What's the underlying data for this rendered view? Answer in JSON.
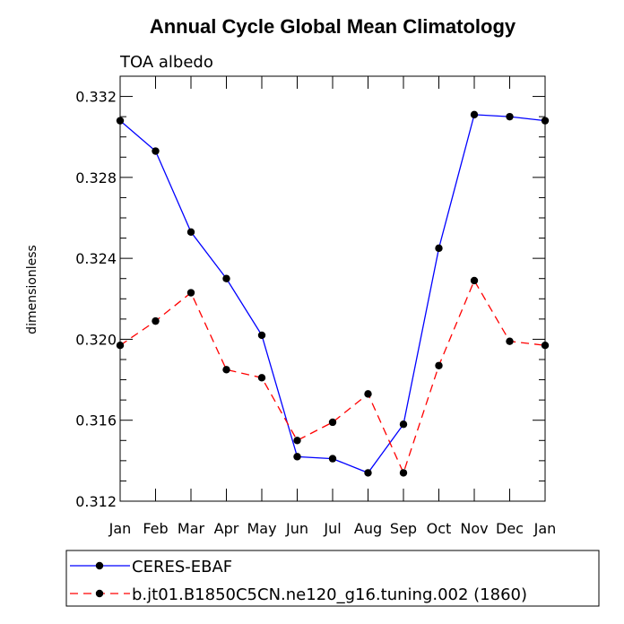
{
  "chart_data": {
    "type": "line",
    "title": "Annual Cycle Global Mean Climatology",
    "subtitle": "TOA albedo",
    "xlabel": "",
    "ylabel": "dimensionless",
    "categories": [
      "Jan",
      "Feb",
      "Mar",
      "Apr",
      "May",
      "Jun",
      "Jul",
      "Aug",
      "Sep",
      "Oct",
      "Nov",
      "Dec",
      "Jan"
    ],
    "ylim": [
      0.312,
      0.333
    ],
    "yticks": [
      "0.312",
      "0.316",
      "0.320",
      "0.324",
      "0.328",
      "0.332"
    ],
    "ytick_values": [
      0.312,
      0.316,
      0.32,
      0.324,
      0.328,
      0.332
    ],
    "series": [
      {
        "name": "CERES-EBAF",
        "color": "#0000ff",
        "style": "solid",
        "values": [
          0.3308,
          0.3293,
          0.3253,
          0.323,
          0.3202,
          0.3142,
          0.3141,
          0.3134,
          0.3158,
          0.3245,
          0.3311,
          0.331,
          0.3308
        ]
      },
      {
        "name": "b.jt01.B1850C5CN.ne120_g16.tuning.002 (1860)",
        "color": "#ff0000",
        "style": "dashed",
        "values": [
          0.3197,
          0.3209,
          0.3223,
          0.3185,
          0.3181,
          0.315,
          0.3159,
          0.3173,
          0.3134,
          0.3187,
          0.3229,
          0.3199,
          0.3197
        ]
      }
    ],
    "legend_position": "bottom"
  }
}
